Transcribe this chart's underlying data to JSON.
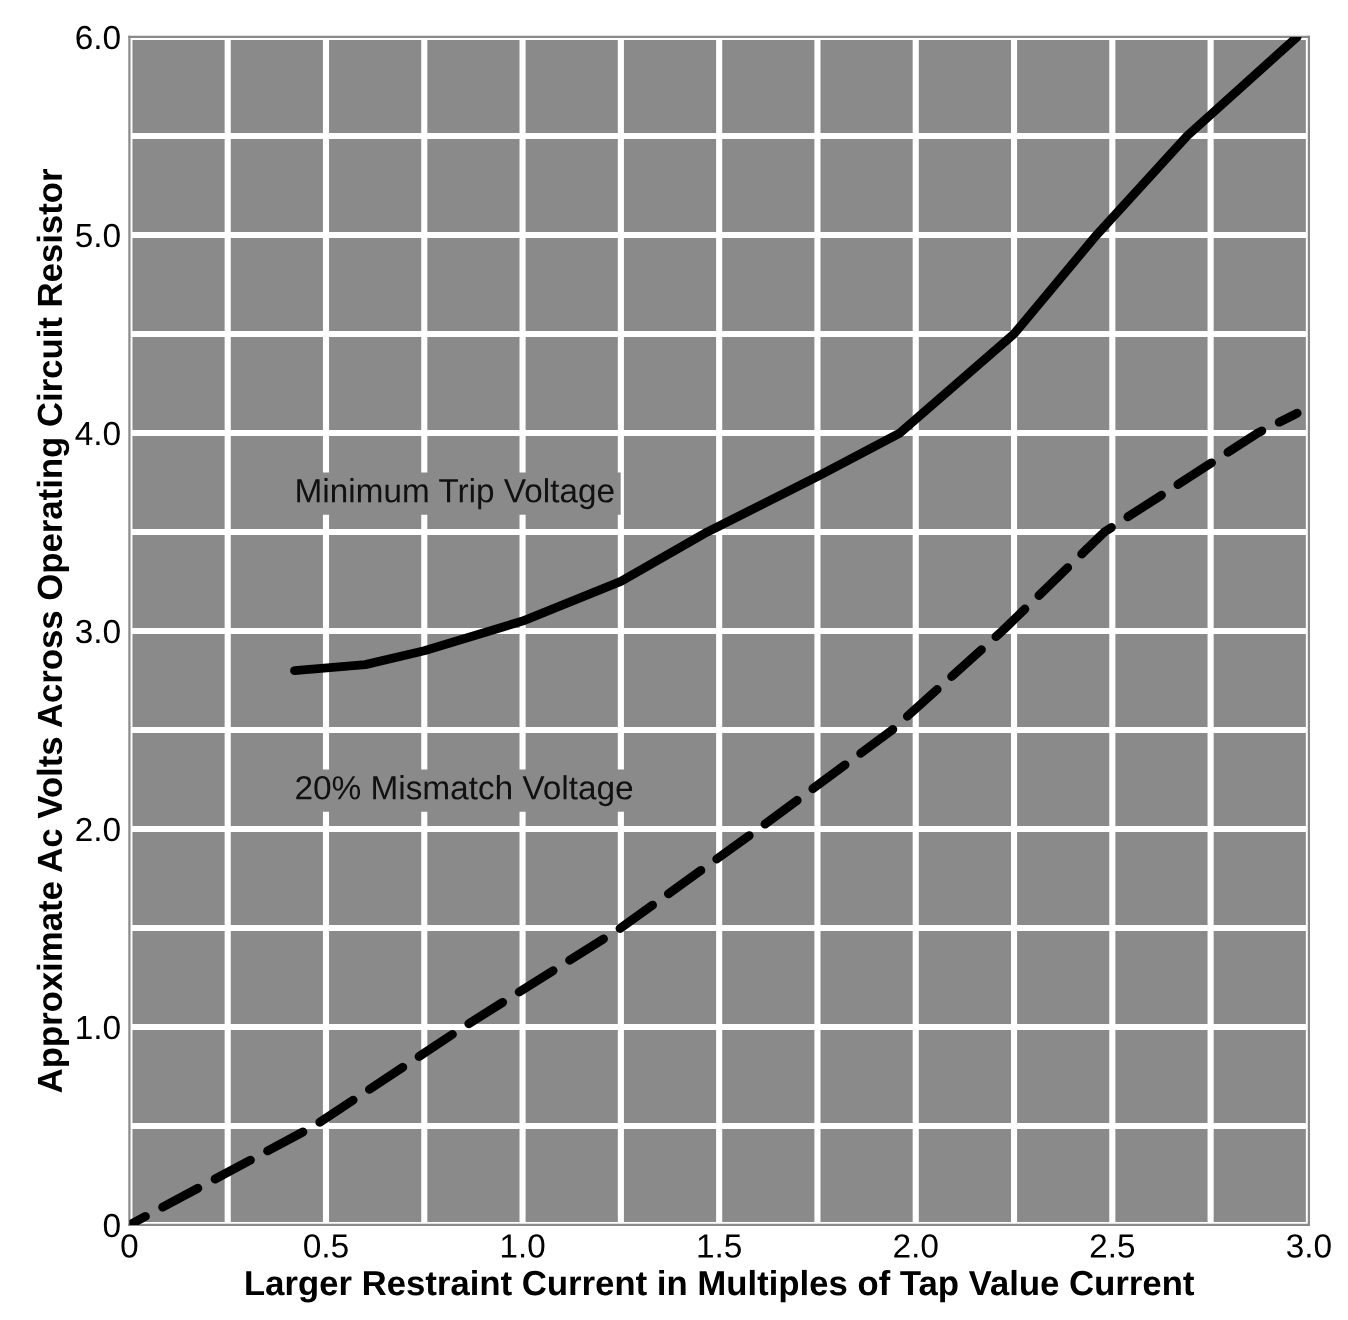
{
  "chart_data": {
    "type": "line",
    "xlabel": "Larger Restraint Current in Multiples of Tap Value Current",
    "ylabel": "Approximate Ac Volts Across Operating Circuit Resistor",
    "series": [
      {
        "name": "Minimum Trip Voltage",
        "color": "#000000",
        "line_style": "solid",
        "x": [
          0.42,
          0.6,
          0.75,
          1.0,
          1.25,
          1.47,
          1.75,
          1.96,
          2.25,
          2.46,
          2.69,
          2.97
        ],
        "values": [
          2.8,
          2.83,
          2.9,
          3.05,
          3.25,
          3.5,
          3.78,
          4.0,
          4.5,
          5.0,
          5.5,
          6.0
        ]
      },
      {
        "name": "20% Mismatch Voltage",
        "color": "#000000",
        "line_style": "dashed",
        "x": [
          0,
          0.47,
          0.85,
          1.25,
          1.6,
          1.94,
          2.22,
          2.48,
          2.87,
          2.97
        ],
        "values": [
          0,
          0.5,
          1.0,
          1.5,
          2.0,
          2.5,
          3.0,
          3.5,
          4.0,
          4.1
        ]
      }
    ],
    "xlim": [
      0,
      3.0
    ],
    "ylim": [
      0,
      6.0
    ],
    "xticks": [
      {
        "value": 0,
        "label": "0"
      },
      {
        "value": 0.25,
        "label": null
      },
      0.5,
      {
        "value": 0.75,
        "label": null
      },
      {
        "value": 1.0,
        "label": "1.0"
      },
      {
        "value": 1.25,
        "label": null
      },
      1.5,
      {
        "value": 1.75,
        "label": null
      },
      {
        "value": 2.0,
        "label": "2.0"
      },
      {
        "value": 2.25,
        "label": null
      },
      2.5,
      {
        "value": 2.75,
        "label": null
      },
      {
        "value": 3.0,
        "label": "3.0"
      }
    ],
    "yticks": [
      {
        "value": 0,
        "label": "0"
      },
      {
        "value": 0.5,
        "label": null
      },
      {
        "value": 1.0,
        "label": "1.0"
      },
      {
        "value": 1.5,
        "label": null
      },
      {
        "value": 2.0,
        "label": "2.0"
      },
      {
        "value": 2.5,
        "label": null
      },
      {
        "value": 3.0,
        "label": "3.0"
      },
      {
        "value": 3.5,
        "label": null
      },
      {
        "value": 4.0,
        "label": "4.0"
      },
      {
        "value": 4.5,
        "label": null
      },
      {
        "value": 5.0,
        "label": "5.0"
      },
      {
        "value": 5.5,
        "label": null
      },
      {
        "value": 6.0,
        "label": "6.0"
      }
    ],
    "grid": true,
    "marker": "none",
    "legend": false
  }
}
